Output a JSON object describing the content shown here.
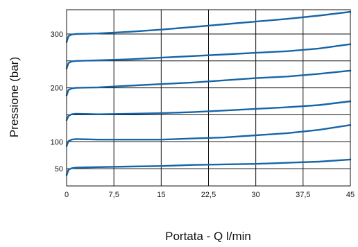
{
  "chart_data": {
    "type": "line",
    "title": "",
    "xlabel": "Portata - Q l/min",
    "ylabel": "Pressione (bar)",
    "xlim": [
      0,
      45
    ],
    "ylim": [
      18,
      345
    ],
    "x_ticks": [
      0,
      7.5,
      15,
      22.5,
      30,
      37.5,
      45
    ],
    "x_tick_labels": [
      "0",
      "7,5",
      "15",
      "22,5",
      "30",
      "37,5",
      "45"
    ],
    "y_ticks": [
      50,
      100,
      200,
      300
    ],
    "y_tick_labels": [
      "50",
      "100",
      "200",
      "300"
    ],
    "grid_y": [
      50,
      100,
      150,
      200,
      250,
      300
    ],
    "grid": true,
    "line_color": "#1565a8",
    "series": [
      {
        "x": [
          0,
          0.3,
          0.8,
          1.5,
          5,
          10,
          15,
          20,
          25,
          30,
          35,
          40,
          45
        ],
        "y": [
          38,
          48,
          51,
          52,
          53,
          54,
          55,
          57,
          58,
          59,
          61,
          63,
          67
        ]
      },
      {
        "x": [
          0,
          0.3,
          0.8,
          1.5,
          5,
          10,
          15,
          20,
          25,
          30,
          35,
          40,
          45
        ],
        "y": [
          92,
          101,
          104,
          105,
          104,
          104,
          104,
          106,
          108,
          112,
          116,
          122,
          131
        ]
      },
      {
        "x": [
          0,
          0.3,
          0.8,
          1.5,
          5,
          10,
          15,
          20,
          25,
          30,
          35,
          40,
          45
        ],
        "y": [
          140,
          148,
          151,
          152,
          151,
          152,
          153,
          155,
          158,
          161,
          164,
          168,
          175
        ]
      },
      {
        "x": [
          0,
          0.3,
          0.8,
          1.5,
          5,
          10,
          15,
          20,
          25,
          30,
          35,
          40,
          45
        ],
        "y": [
          186,
          196,
          199,
          200,
          201,
          204,
          207,
          210,
          214,
          218,
          221,
          226,
          232
        ]
      },
      {
        "x": [
          0,
          0.3,
          0.8,
          1.5,
          5,
          10,
          15,
          20,
          25,
          30,
          35,
          40,
          45
        ],
        "y": [
          236,
          246,
          249,
          250,
          251,
          253,
          256,
          259,
          262,
          265,
          268,
          273,
          281
        ]
      },
      {
        "x": [
          0,
          0.3,
          0.8,
          1.5,
          5,
          10,
          15,
          20,
          25,
          30,
          35,
          40,
          45
        ],
        "y": [
          285,
          296,
          299,
          300,
          301,
          304,
          308,
          313,
          318,
          323,
          328,
          334,
          341
        ]
      }
    ]
  }
}
